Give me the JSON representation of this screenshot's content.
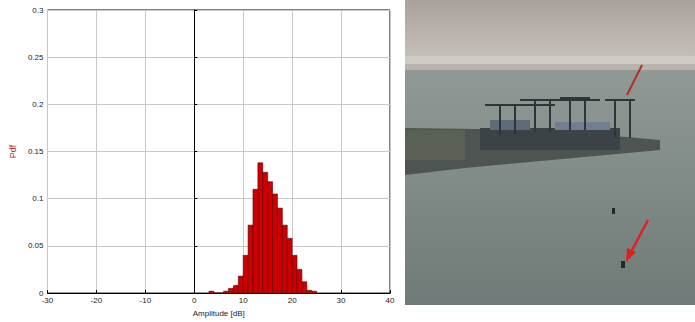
{
  "chart_data": {
    "type": "histogram",
    "xlabel": "Amplitude [dB]",
    "ylabel": "Pdf",
    "bins": [
      3,
      4,
      5,
      6,
      7,
      8,
      9,
      10,
      11,
      12,
      13,
      14,
      15,
      16,
      17,
      18,
      19,
      20,
      21,
      22,
      23,
      24,
      25
    ],
    "counts": [
      0.002,
      0,
      0,
      0.002,
      0.005,
      0.008,
      0.018,
      0.04,
      0.072,
      0.11,
      0.138,
      0.128,
      0.118,
      0.105,
      0.09,
      0.072,
      0.058,
      0.04,
      0.025,
      0.012,
      0.003,
      0.002
    ],
    "color": "#cc0000",
    "xlim": [
      -30,
      40
    ],
    "xticks": [
      -30,
      -20,
      -10,
      0,
      10,
      20,
      30,
      40
    ],
    "ylim": [
      0,
      0.3
    ],
    "yticks": [
      0,
      0.05,
      0.1,
      0.15,
      0.2,
      0.25,
      0.3
    ],
    "grid": true
  }
}
